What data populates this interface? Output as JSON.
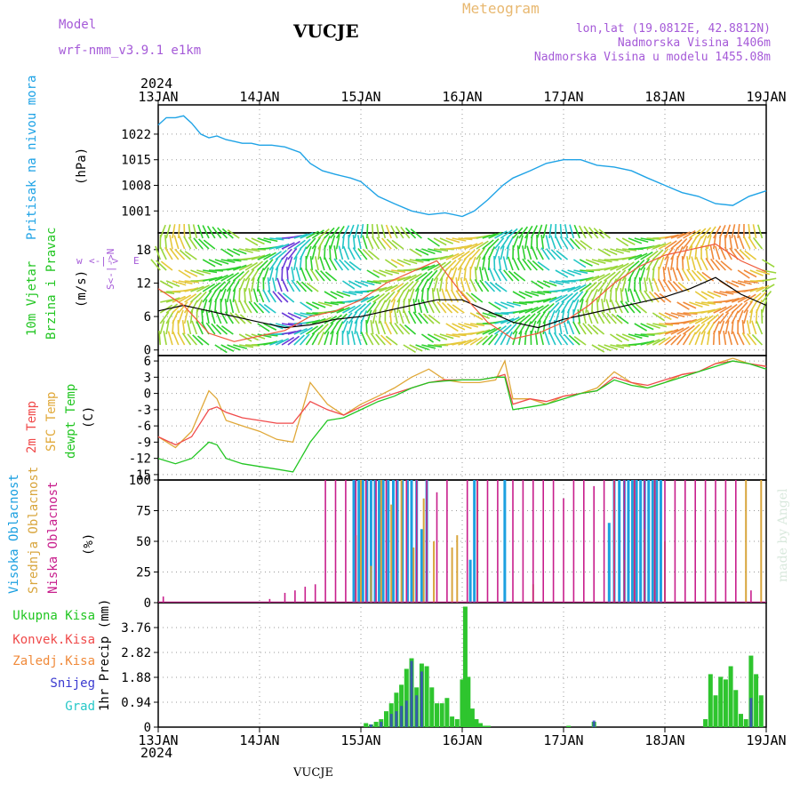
{
  "header": {
    "model_label": "Model",
    "model_name": "wrf-nmm_v3.9.1  e1km",
    "station": "VUCJE",
    "product": "Meteogram",
    "lonlat": "lon,lat (19.0812E, 42.8812N)",
    "altitude": "Nadmorska Visina 1406m",
    "model_altitude": "Nadmorska Visina u modelu 1455.08m",
    "year": "2024",
    "watermark": "made by Angel",
    "footer_station": "VUCJE"
  },
  "colors": {
    "pressure": "#1fa3e6",
    "t2m": "#f04a4a",
    "sfc": "#e0a838",
    "dew": "#22c622",
    "high_cloud": "#1ca0e0",
    "mid_cloud": "#d8a53c",
    "low_cloud": "#c81e8c",
    "total_precip": "#2ec52e",
    "snow": "#3a3ad0",
    "graupel": "#27c8c8",
    "convective": "#f04a4a",
    "frozen": "#f08a3a"
  },
  "chart_data": [
    {
      "type": "line",
      "panel": "pressure",
      "ylabel_series": "Pritisak na nivou mora",
      "unit": "(hPa)",
      "ylim": [
        995,
        1030
      ],
      "yticks": [
        "1022",
        "1015",
        "1008",
        "1001"
      ],
      "ytick_values": [
        1022,
        1015,
        1008,
        1001
      ],
      "xticks": [
        "13JAN",
        "14JAN",
        "15JAN",
        "16JAN",
        "17JAN",
        "18JAN",
        "19JAN"
      ],
      "x_days": [
        0,
        0.08,
        0.17,
        0.25,
        0.33,
        0.42,
        0.5,
        0.58,
        0.67,
        0.75,
        0.83,
        0.92,
        1.0,
        1.12,
        1.25,
        1.4,
        1.5,
        1.62,
        1.75,
        1.9,
        2.0,
        2.17,
        2.33,
        2.5,
        2.67,
        2.83,
        3.0,
        3.12,
        3.25,
        3.4,
        3.5,
        3.67,
        3.83,
        4.0,
        4.17,
        4.33,
        4.5,
        4.67,
        4.83,
        5.0,
        5.17,
        5.33,
        5.5,
        5.67,
        5.83,
        6.0
      ],
      "y": [
        1024.5,
        1026.5,
        1026.5,
        1027,
        1025,
        1022,
        1021,
        1021.5,
        1020.5,
        1020,
        1019.5,
        1019.5,
        1019,
        1019,
        1018.5,
        1017,
        1014,
        1012,
        1011,
        1010,
        1009,
        1005,
        1003,
        1001,
        1000,
        1000.5,
        999.5,
        1001,
        1004,
        1008,
        1010,
        1012,
        1014,
        1015,
        1015,
        1013.5,
        1013,
        1012,
        1010,
        1008,
        1006,
        1005,
        1003,
        1002.5,
        1005,
        1006.5
      ]
    },
    {
      "type": "line",
      "panel": "wind",
      "ylabel_series": "10m Vjetar",
      "ylabel_series2": "Brzina i Pravac",
      "unit": "(m/s)",
      "compass": [
        "w",
        "<-|->",
        "E",
        "S<-|->N"
      ],
      "ylim": [
        -1,
        21
      ],
      "yticks": [
        "18",
        "12",
        "6",
        "0"
      ],
      "ytick_values": [
        18,
        12,
        6,
        0
      ],
      "series": [
        {
          "name": "speed",
          "x_days": [
            0,
            0.25,
            0.5,
            0.75,
            1.0,
            1.25,
            1.5,
            1.75,
            2.0,
            2.25,
            2.5,
            2.75,
            3.0,
            3.25,
            3.5,
            3.75,
            4.0,
            4.25,
            4.5,
            4.75,
            5.0,
            5.25,
            5.5,
            5.75,
            6.0
          ],
          "y": [
            7,
            8,
            7,
            6,
            5,
            4,
            4.5,
            5.5,
            6,
            7,
            8,
            9,
            9,
            7,
            5,
            4,
            5.5,
            6.5,
            7.5,
            8.5,
            9.5,
            11,
            13,
            10,
            8
          ]
        },
        {
          "name": "gust",
          "x_days": [
            0,
            0.25,
            0.5,
            0.75,
            1.0,
            1.25,
            1.5,
            1.75,
            2.0,
            2.25,
            2.5,
            2.75,
            3.0,
            3.25,
            3.5,
            3.75,
            4.0,
            4.25,
            4.5,
            4.75,
            5.0,
            5.25,
            5.5,
            5.75,
            6.0
          ],
          "y": [
            11,
            8,
            3,
            1.5,
            2.5,
            3.5,
            6,
            7,
            9,
            12,
            14,
            16,
            10,
            5,
            2,
            3,
            5,
            8,
            12,
            15,
            17,
            18,
            19,
            16,
            14
          ]
        }
      ]
    },
    {
      "type": "line",
      "panel": "temperature",
      "ylabel_series": [
        "2m Temp",
        "SFC Temp",
        "dewpt Temp"
      ],
      "unit": "(C)",
      "ylim": [
        -16,
        7
      ],
      "yticks": [
        "6",
        "3",
        "0",
        "-3",
        "-6",
        "-9",
        "-12",
        "-15"
      ],
      "ytick_values": [
        6,
        3,
        0,
        -3,
        -6,
        -9,
        -12,
        -15
      ],
      "x_days": [
        0,
        0.17,
        0.33,
        0.5,
        0.58,
        0.67,
        0.83,
        1.0,
        1.17,
        1.33,
        1.5,
        1.67,
        1.83,
        2.0,
        2.17,
        2.33,
        2.5,
        2.67,
        2.83,
        3.0,
        3.17,
        3.33,
        3.42,
        3.5,
        3.67,
        3.83,
        4.0,
        4.17,
        4.33,
        4.5,
        4.67,
        4.83,
        5.0,
        5.17,
        5.33,
        5.5,
        5.67,
        5.83,
        6.0
      ],
      "series": [
        {
          "name": "2m",
          "y": [
            -8,
            -9.5,
            -8,
            -3,
            -2.5,
            -3.5,
            -4.5,
            -5,
            -5.5,
            -5.5,
            -1.5,
            -3,
            -4,
            -2.5,
            -1,
            0,
            1,
            2,
            2.5,
            2.5,
            2.5,
            3,
            3.5,
            -2,
            -1,
            -1.5,
            -0.5,
            0,
            0.5,
            3,
            2,
            1.5,
            2.5,
            3.5,
            4,
            5.5,
            6,
            5.5,
            5
          ]
        },
        {
          "name": "sfc",
          "y": [
            -8,
            -10,
            -7,
            0.5,
            -1,
            -5,
            -6,
            -7,
            -8.5,
            -9,
            2,
            -2,
            -4,
            -2,
            -0.5,
            1,
            3,
            4.5,
            2.5,
            2,
            2,
            2.5,
            6,
            -1,
            -1,
            -2,
            -0.5,
            0,
            1,
            4,
            2,
            1,
            2,
            3.5,
            4,
            5.5,
            6.5,
            5.5,
            5
          ]
        },
        {
          "name": "dewpt",
          "y": [
            -12,
            -13,
            -12,
            -9,
            -9.5,
            -12,
            -13,
            -13.5,
            -14,
            -14.5,
            -9,
            -5,
            -4.5,
            -3,
            -1.5,
            -0.5,
            1,
            2,
            2.3,
            2.5,
            2.5,
            3,
            3,
            -3,
            -2.5,
            -2,
            -1,
            0,
            0.5,
            2.5,
            1.5,
            1,
            2,
            3,
            4,
            5,
            6,
            5.5,
            4.5
          ]
        }
      ]
    },
    {
      "type": "bar",
      "panel": "clouds",
      "ylabel_series": [
        "Visoka Oblacnost",
        "Srednja Oblacnost",
        "Niska Oblacnost"
      ],
      "unit": "(%)",
      "ylim": [
        0,
        100
      ],
      "yticks": [
        "100",
        "75",
        "50",
        "25",
        "0"
      ],
      "ytick_values": [
        100,
        75,
        50,
        25,
        0
      ],
      "series": [
        {
          "name": "high",
          "x_days": [
            1.93,
            1.98,
            2.02,
            2.06,
            2.1,
            2.14,
            2.18,
            2.22,
            2.27,
            2.32,
            2.36,
            2.41,
            2.46,
            2.5,
            2.55,
            2.6,
            2.65,
            3.08,
            3.12,
            3.42,
            4.45,
            4.5,
            4.55,
            4.6,
            4.64,
            4.68,
            4.72,
            4.76,
            4.8,
            4.84,
            4.88,
            4.92,
            4.96
          ],
          "y": [
            100,
            100,
            100,
            100,
            100,
            100,
            100,
            100,
            100,
            100,
            100,
            100,
            100,
            100,
            100,
            60,
            100,
            35,
            100,
            100,
            65,
            100,
            100,
            100,
            100,
            100,
            100,
            100,
            100,
            100,
            100,
            100,
            100
          ]
        },
        {
          "name": "mid",
          "x_days": [
            1.95,
            2.0,
            2.1,
            2.2,
            2.3,
            2.4,
            2.52,
            2.62,
            2.72,
            2.9,
            2.95,
            3.15,
            3.7,
            4.5,
            4.6,
            4.7,
            4.8,
            4.9,
            5.0,
            5.8,
            5.95
          ],
          "y": [
            55,
            100,
            30,
            100,
            80,
            100,
            45,
            85,
            50,
            45,
            55,
            100,
            15,
            100,
            35,
            100,
            60,
            100,
            50,
            100,
            100
          ]
        },
        {
          "name": "low",
          "x_days": [
            0.05,
            1.1,
            1.25,
            1.35,
            1.45,
            1.55,
            1.65,
            1.75,
            1.85,
            1.95,
            2.05,
            2.15,
            2.25,
            2.35,
            2.45,
            2.55,
            2.65,
            2.75,
            2.85,
            3.05,
            3.15,
            3.25,
            3.35,
            3.5,
            3.6,
            3.7,
            3.8,
            3.9,
            4.0,
            4.1,
            4.2,
            4.3,
            4.4,
            4.5,
            4.6,
            4.7,
            4.8,
            4.9,
            5.0,
            5.1,
            5.2,
            5.3,
            5.4,
            5.5,
            5.6,
            5.7,
            5.85
          ],
          "y": [
            5,
            3,
            8,
            10,
            13,
            15,
            100,
            100,
            100,
            100,
            100,
            100,
            100,
            100,
            100,
            100,
            100,
            90,
            100,
            100,
            100,
            100,
            100,
            100,
            100,
            100,
            100,
            100,
            85,
            100,
            100,
            95,
            100,
            100,
            100,
            100,
            100,
            100,
            100,
            100,
            100,
            100,
            100,
            100,
            100,
            100,
            10
          ]
        }
      ]
    },
    {
      "type": "bar",
      "panel": "precip",
      "ylabel_series": [
        "Ukupna Kisa",
        "Konvek.Kisa",
        "Zaledj.Kisa",
        "Snijeg",
        "Grad"
      ],
      "unit": "1hr Precip (mm)",
      "ylim": [
        0,
        4.7
      ],
      "yticks": [
        "3.76",
        "2.82",
        "1.88",
        "0.94",
        "0"
      ],
      "ytick_values": [
        3.76,
        2.82,
        1.88,
        0.94,
        0
      ],
      "series": [
        {
          "name": "total",
          "x_days": [
            2.05,
            2.1,
            2.15,
            2.2,
            2.25,
            2.3,
            2.35,
            2.4,
            2.45,
            2.5,
            2.55,
            2.6,
            2.65,
            2.7,
            2.75,
            2.8,
            2.85,
            2.9,
            2.95,
            3.0,
            3.03,
            3.06,
            3.1,
            3.14,
            3.18,
            3.22,
            3.26,
            4.05,
            4.3,
            5.4,
            5.45,
            5.5,
            5.55,
            5.6,
            5.65,
            5.7,
            5.75,
            5.8,
            5.85,
            5.9,
            5.95
          ],
          "y": [
            0.15,
            0.1,
            0.2,
            0.3,
            0.6,
            0.9,
            1.3,
            1.6,
            2.2,
            2.6,
            1.5,
            2.4,
            2.3,
            1.5,
            0.9,
            0.9,
            1.1,
            0.4,
            0.3,
            1.8,
            4.55,
            1.9,
            0.7,
            0.3,
            0.15,
            0.05,
            0.05,
            0.05,
            0.2,
            0.3,
            2.0,
            1.2,
            1.9,
            1.8,
            2.3,
            1.4,
            0.5,
            0.3,
            2.7,
            2.0,
            1.2
          ]
        },
        {
          "name": "snow",
          "x_days": [
            2.1,
            2.2,
            2.3,
            2.35,
            2.4,
            2.45,
            2.5,
            2.55,
            2.6,
            4.3,
            5.85
          ],
          "y": [
            0.1,
            0.2,
            0.5,
            0.6,
            0.8,
            1.0,
            2.5,
            1.2,
            2.1,
            0.25,
            1.1
          ]
        }
      ]
    }
  ]
}
